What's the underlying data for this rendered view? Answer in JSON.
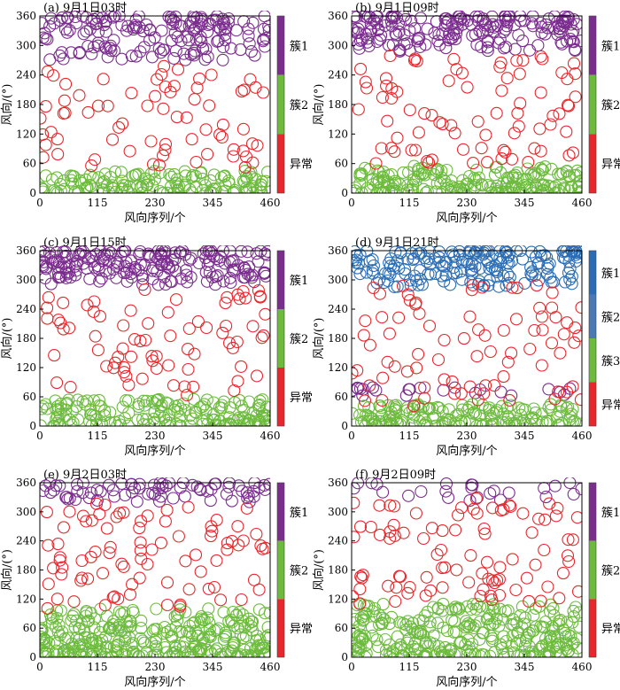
{
  "figure": {
    "colors": {
      "簇1": "#7b2d8e",
      "簇2": "#6cbb3c",
      "簇3": "#6cbb3c",
      "异常": "#e8262b",
      "blue_cluster": "#2a6db5",
      "colorbar_blue": "#4a7ab5"
    }
  },
  "chart_data": [
    {
      "type": "scatter",
      "title": "(a)  9月1日03时",
      "xlabel": "风向序列/个",
      "ylabel": "风向/(°)",
      "xlim": [
        0,
        460
      ],
      "ylim": [
        0,
        360
      ],
      "xticks": [
        0,
        115,
        230,
        345,
        460
      ],
      "yticks": [
        0,
        60,
        120,
        180,
        240,
        300,
        360
      ],
      "legend": [
        "簇1",
        "簇2",
        "异常"
      ],
      "colorbar": [
        {
          "label": "簇1",
          "color": "#7b2d8e"
        },
        {
          "label": "簇2",
          "color": "#6cbb3c"
        },
        {
          "label": "异常",
          "color": "#e8262b"
        }
      ],
      "series": [
        {
          "name": "簇1",
          "color": "#7b2d8e",
          "n": 170,
          "y_range": [
            270,
            360
          ]
        },
        {
          "name": "簇2",
          "color": "#6cbb3c",
          "n": 150,
          "y_range": [
            0,
            45
          ]
        },
        {
          "name": "异常",
          "color": "#e8262b",
          "n": 70,
          "y_range": [
            50,
            265
          ]
        }
      ]
    },
    {
      "type": "scatter",
      "title": "(b)  9月1日09时",
      "xlabel": "风向序列/个",
      "ylabel": "风向/(°)",
      "xlim": [
        0,
        460
      ],
      "ylim": [
        0,
        360
      ],
      "xticks": [
        0,
        115,
        230,
        345,
        460
      ],
      "yticks": [
        0,
        60,
        120,
        180,
        240,
        300,
        360
      ],
      "colorbar": [
        {
          "label": "簇1",
          "color": "#7b2d8e"
        },
        {
          "label": "簇2",
          "color": "#6cbb3c"
        },
        {
          "label": "异常",
          "color": "#e8262b"
        }
      ],
      "series": [
        {
          "name": "簇1",
          "color": "#7b2d8e",
          "n": 190,
          "y_range": [
            285,
            360
          ]
        },
        {
          "name": "簇2",
          "color": "#6cbb3c",
          "n": 200,
          "y_range": [
            0,
            55
          ]
        },
        {
          "name": "异常",
          "color": "#e8262b",
          "n": 80,
          "y_range": [
            60,
            280
          ]
        }
      ]
    },
    {
      "type": "scatter",
      "title": "(c)  9月1日15时",
      "xlabel": "风向序列/个",
      "ylabel": "风向/(°)",
      "xlim": [
        0,
        460
      ],
      "ylim": [
        0,
        360
      ],
      "xticks": [
        0,
        115,
        230,
        345,
        460
      ],
      "yticks": [
        0,
        60,
        120,
        180,
        240,
        300,
        360
      ],
      "colorbar": [
        {
          "label": "簇1",
          "color": "#7b2d8e"
        },
        {
          "label": "簇2",
          "color": "#6cbb3c"
        },
        {
          "label": "异常",
          "color": "#e8262b"
        }
      ],
      "series": [
        {
          "name": "簇1",
          "color": "#7b2d8e",
          "n": 200,
          "y_range": [
            290,
            360
          ]
        },
        {
          "name": "簇2",
          "color": "#6cbb3c",
          "n": 180,
          "y_range": [
            0,
            55
          ]
        },
        {
          "name": "异常",
          "color": "#e8262b",
          "n": 75,
          "y_range": [
            60,
            285
          ]
        }
      ]
    },
    {
      "type": "scatter",
      "title": "(d)  9月1日21时",
      "xlabel": "风向序列/个",
      "ylabel": "风向/(°)",
      "xlim": [
        0,
        460
      ],
      "ylim": [
        0,
        360
      ],
      "xticks": [
        0,
        115,
        230,
        345,
        460
      ],
      "yticks": [
        0,
        60,
        120,
        180,
        240,
        300,
        360
      ],
      "colorbar": [
        {
          "label": "簇1",
          "color": "#2a6db5"
        },
        {
          "label": "簇2",
          "color": "#4a7ab5"
        },
        {
          "label": "簇3",
          "color": "#6cbb3c"
        },
        {
          "label": "异常",
          "color": "#e8262b"
        }
      ],
      "series": [
        {
          "name": "簇1",
          "color": "#2a6db5",
          "n": 190,
          "y_range": [
            285,
            360
          ]
        },
        {
          "name": "簇2",
          "color": "#7b2d8e",
          "n": 22,
          "y_range": [
            60,
            80
          ]
        },
        {
          "name": "簇3",
          "color": "#6cbb3c",
          "n": 170,
          "y_range": [
            0,
            45
          ]
        },
        {
          "name": "异常",
          "color": "#e8262b",
          "n": 80,
          "y_range": [
            40,
            290
          ]
        }
      ]
    },
    {
      "type": "scatter",
      "title": "(e)  9月2日03时",
      "xlabel": "风向序列/个",
      "ylabel": "风向/(°)",
      "xlim": [
        0,
        460
      ],
      "ylim": [
        0,
        360
      ],
      "xticks": [
        0,
        115,
        230,
        345,
        460
      ],
      "yticks": [
        0,
        60,
        120,
        180,
        240,
        300,
        360
      ],
      "colorbar": [
        {
          "label": "簇1",
          "color": "#7b2d8e"
        },
        {
          "label": "簇2",
          "color": "#6cbb3c"
        },
        {
          "label": "异常",
          "color": "#e8262b"
        }
      ],
      "series": [
        {
          "name": "簇1",
          "color": "#7b2d8e",
          "n": 75,
          "y_range": [
            320,
            360
          ]
        },
        {
          "name": "簇2",
          "color": "#6cbb3c",
          "n": 320,
          "y_range": [
            0,
            100
          ]
        },
        {
          "name": "异常",
          "color": "#e8262b",
          "n": 85,
          "y_range": [
            100,
            320
          ]
        }
      ]
    },
    {
      "type": "scatter",
      "title": "(f)  9月2日09时",
      "xlabel": "风向序列/个",
      "ylabel": "风向/(°)",
      "xlim": [
        0,
        460
      ],
      "ylim": [
        0,
        360
      ],
      "xticks": [
        0,
        115,
        230,
        345,
        460
      ],
      "yticks": [
        0,
        60,
        120,
        180,
        240,
        300,
        360
      ],
      "colorbar": [
        {
          "label": "簇1",
          "color": "#7b2d8e"
        },
        {
          "label": "簇2",
          "color": "#6cbb3c"
        },
        {
          "label": "异常",
          "color": "#e8262b"
        }
      ],
      "series": [
        {
          "name": "簇1",
          "color": "#7b2d8e",
          "n": 25,
          "y_range": [
            320,
            360
          ]
        },
        {
          "name": "簇2",
          "color": "#6cbb3c",
          "n": 300,
          "y_range": [
            0,
            110
          ]
        },
        {
          "name": "异常",
          "color": "#e8262b",
          "n": 90,
          "y_range": [
            110,
            330
          ]
        }
      ]
    }
  ]
}
